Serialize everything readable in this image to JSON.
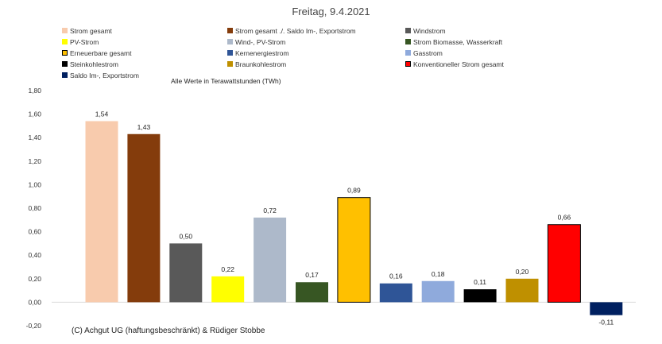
{
  "chart_data": {
    "type": "bar",
    "title": "Freitag, 9.4.2021",
    "subtitle": "Alle Werte in Terawattstunden (TWh)",
    "ylim": [
      -0.2,
      1.8
    ],
    "yticks": [
      -0.2,
      0.0,
      0.2,
      0.4,
      0.6,
      0.8,
      1.0,
      1.2,
      1.4,
      1.6,
      1.8
    ],
    "ytick_labels": [
      "-0,20",
      "0,00",
      "0,20",
      "0,40",
      "0,60",
      "0,80",
      "1,00",
      "1,20",
      "1,40",
      "1,60",
      "1,80"
    ],
    "categories": [
      "Strom gesamt",
      "Strom gesamt ./. Saldo Im-, Exportstrom",
      "Windstrom",
      "PV-Strom",
      "Wind-, PV-Strom",
      "Strom Biomasse, Wasserkraft",
      "Erneuerbare gesamt",
      "Kernenergiestrom",
      "Gasstrom",
      "Steinkohlestrom",
      "Braunkohlestrom",
      "Konventioneller Strom gesamt",
      "Saldo Im-, Exportstrom"
    ],
    "values": [
      1.54,
      1.43,
      0.5,
      0.22,
      0.72,
      0.17,
      0.89,
      0.16,
      0.18,
      0.11,
      0.2,
      0.66,
      -0.11
    ],
    "value_labels": [
      "1,54",
      "1,43",
      "0,50",
      "0,22",
      "0,72",
      "0,17",
      "0,89",
      "0,16",
      "0,18",
      "0,11",
      "0,20",
      "0,66",
      "-0,11"
    ],
    "colors": [
      "#f8cbad",
      "#843c0c",
      "#595959",
      "#ffff00",
      "#adb9ca",
      "#375623",
      "#ffc000",
      "#2f5597",
      "#8faadc",
      "#000000",
      "#bf9000",
      "#ff0000",
      "#002060"
    ],
    "outlined": [
      false,
      false,
      false,
      false,
      false,
      false,
      true,
      false,
      false,
      false,
      false,
      true,
      false
    ],
    "copyright": "(C) Achgut UG (haftungsbeschränkt) & Rüdiger Stobbe"
  }
}
